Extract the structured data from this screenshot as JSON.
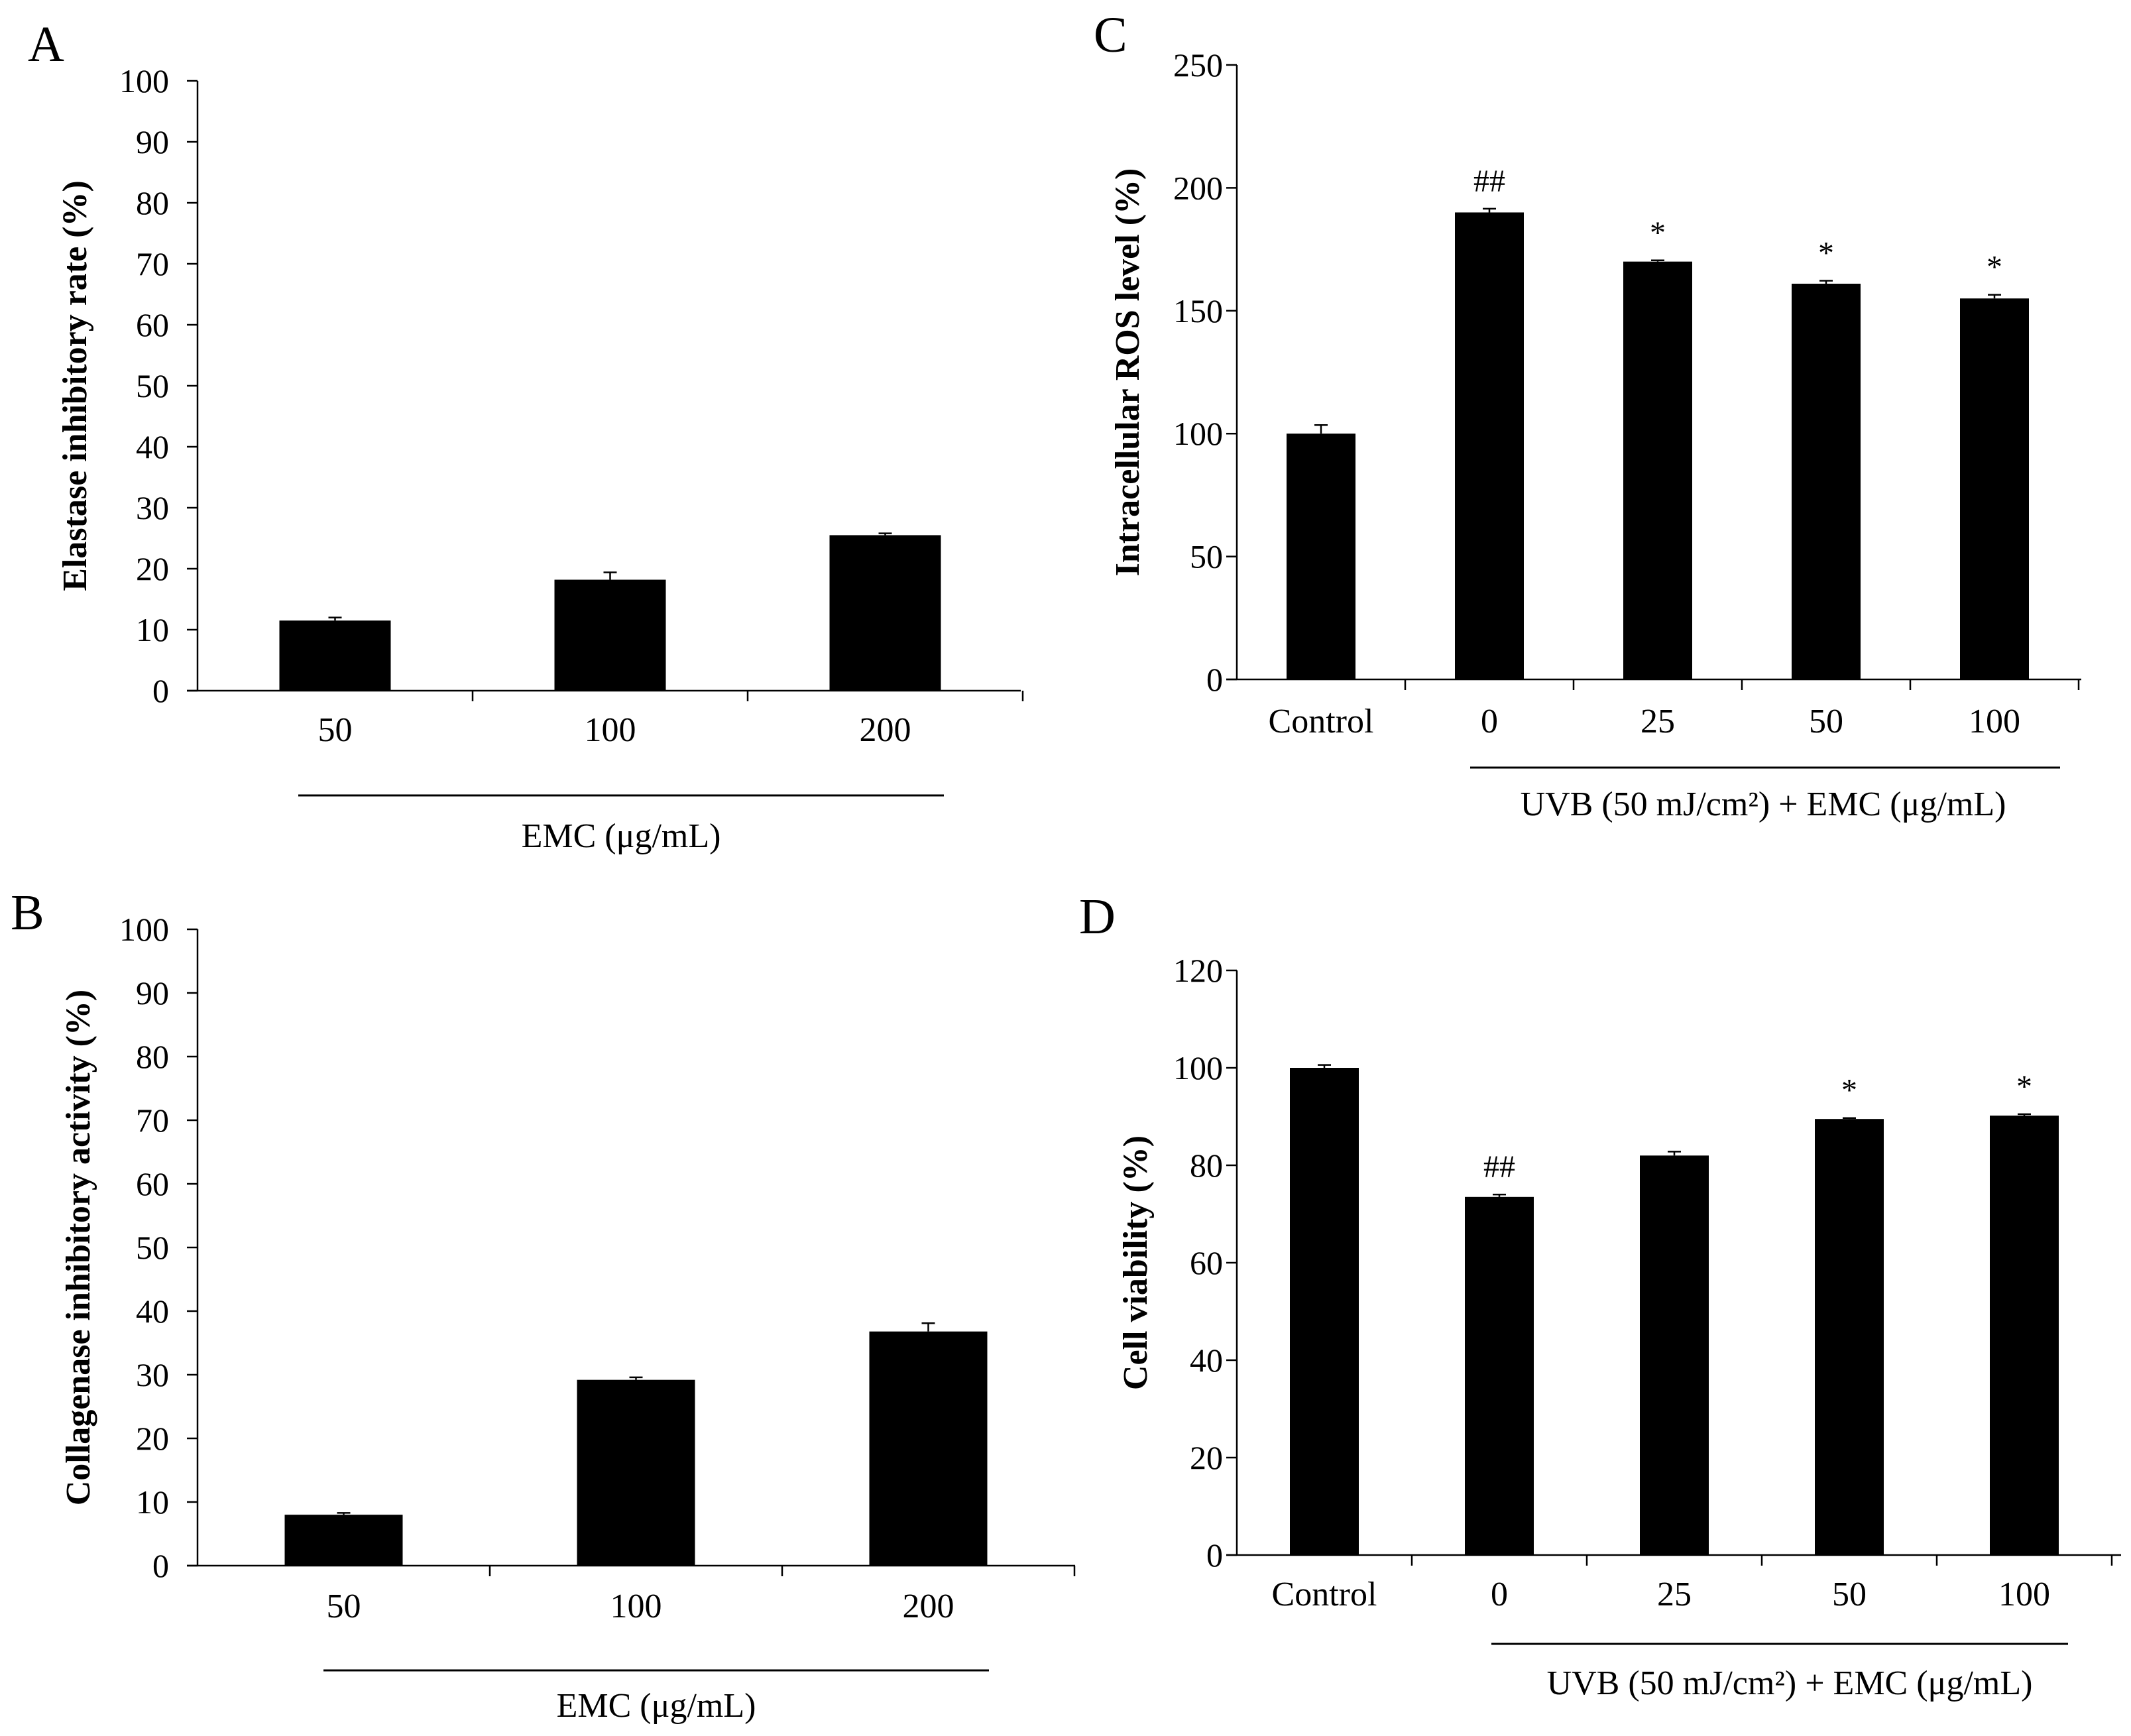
{
  "chart_data": [
    {
      "panel": "A",
      "type": "bar",
      "categories": [
        "50",
        "100",
        "200"
      ],
      "values": [
        11.5,
        18.2,
        25.5
      ],
      "errors": [
        0.5,
        1.2,
        0.3
      ],
      "annotations": [
        "",
        "",
        ""
      ],
      "ylabel": "Elastase inhibitory rate (%)",
      "xlabel": "EMC (μg/mL)",
      "ylim": [
        0,
        100
      ],
      "yticks": [
        0,
        10,
        20,
        30,
        40,
        50,
        60,
        70,
        80,
        90,
        100
      ],
      "grid": false
    },
    {
      "panel": "B",
      "type": "bar",
      "categories": [
        "50",
        "100",
        "200"
      ],
      "values": [
        8.0,
        29.2,
        36.8
      ],
      "errors": [
        0.3,
        0.4,
        1.3
      ],
      "annotations": [
        "",
        "",
        ""
      ],
      "ylabel": "Collagenase inhibitory activity (%)",
      "xlabel": "EMC (μg/mL)",
      "ylim": [
        0,
        100
      ],
      "yticks": [
        0,
        10,
        20,
        30,
        40,
        50,
        60,
        70,
        80,
        90,
        100
      ],
      "grid": false
    },
    {
      "panel": "C",
      "type": "bar",
      "categories": [
        "Control",
        "0",
        "25",
        "50",
        "100"
      ],
      "values": [
        100,
        190,
        170,
        161,
        155
      ],
      "errors": [
        3.5,
        1.5,
        0.5,
        1.2,
        1.5
      ],
      "annotations": [
        "",
        "##",
        "*",
        "*",
        "*"
      ],
      "ylabel": "Intracellular ROS level (%)",
      "xlabel": "UVB (50 mJ/cm²) + EMC (μg/mL)",
      "ylim": [
        0,
        250
      ],
      "yticks": [
        0,
        50,
        100,
        150,
        200,
        250
      ],
      "grid": false
    },
    {
      "panel": "D",
      "type": "bar",
      "categories": [
        "Control",
        "0",
        "25",
        "50",
        "100"
      ],
      "values": [
        100,
        73.5,
        82,
        89.5,
        90.2
      ],
      "errors": [
        0.6,
        0.5,
        0.8,
        0.2,
        0.3
      ],
      "annotations": [
        "",
        "##",
        "",
        "*",
        "*"
      ],
      "ylabel": "Cell viability (%)",
      "xlabel": "UVB (50 mJ/cm²) + EMC (μg/mL)",
      "ylim": [
        0,
        120
      ],
      "yticks": [
        0,
        20,
        40,
        60,
        80,
        100,
        120
      ],
      "grid": false
    }
  ]
}
